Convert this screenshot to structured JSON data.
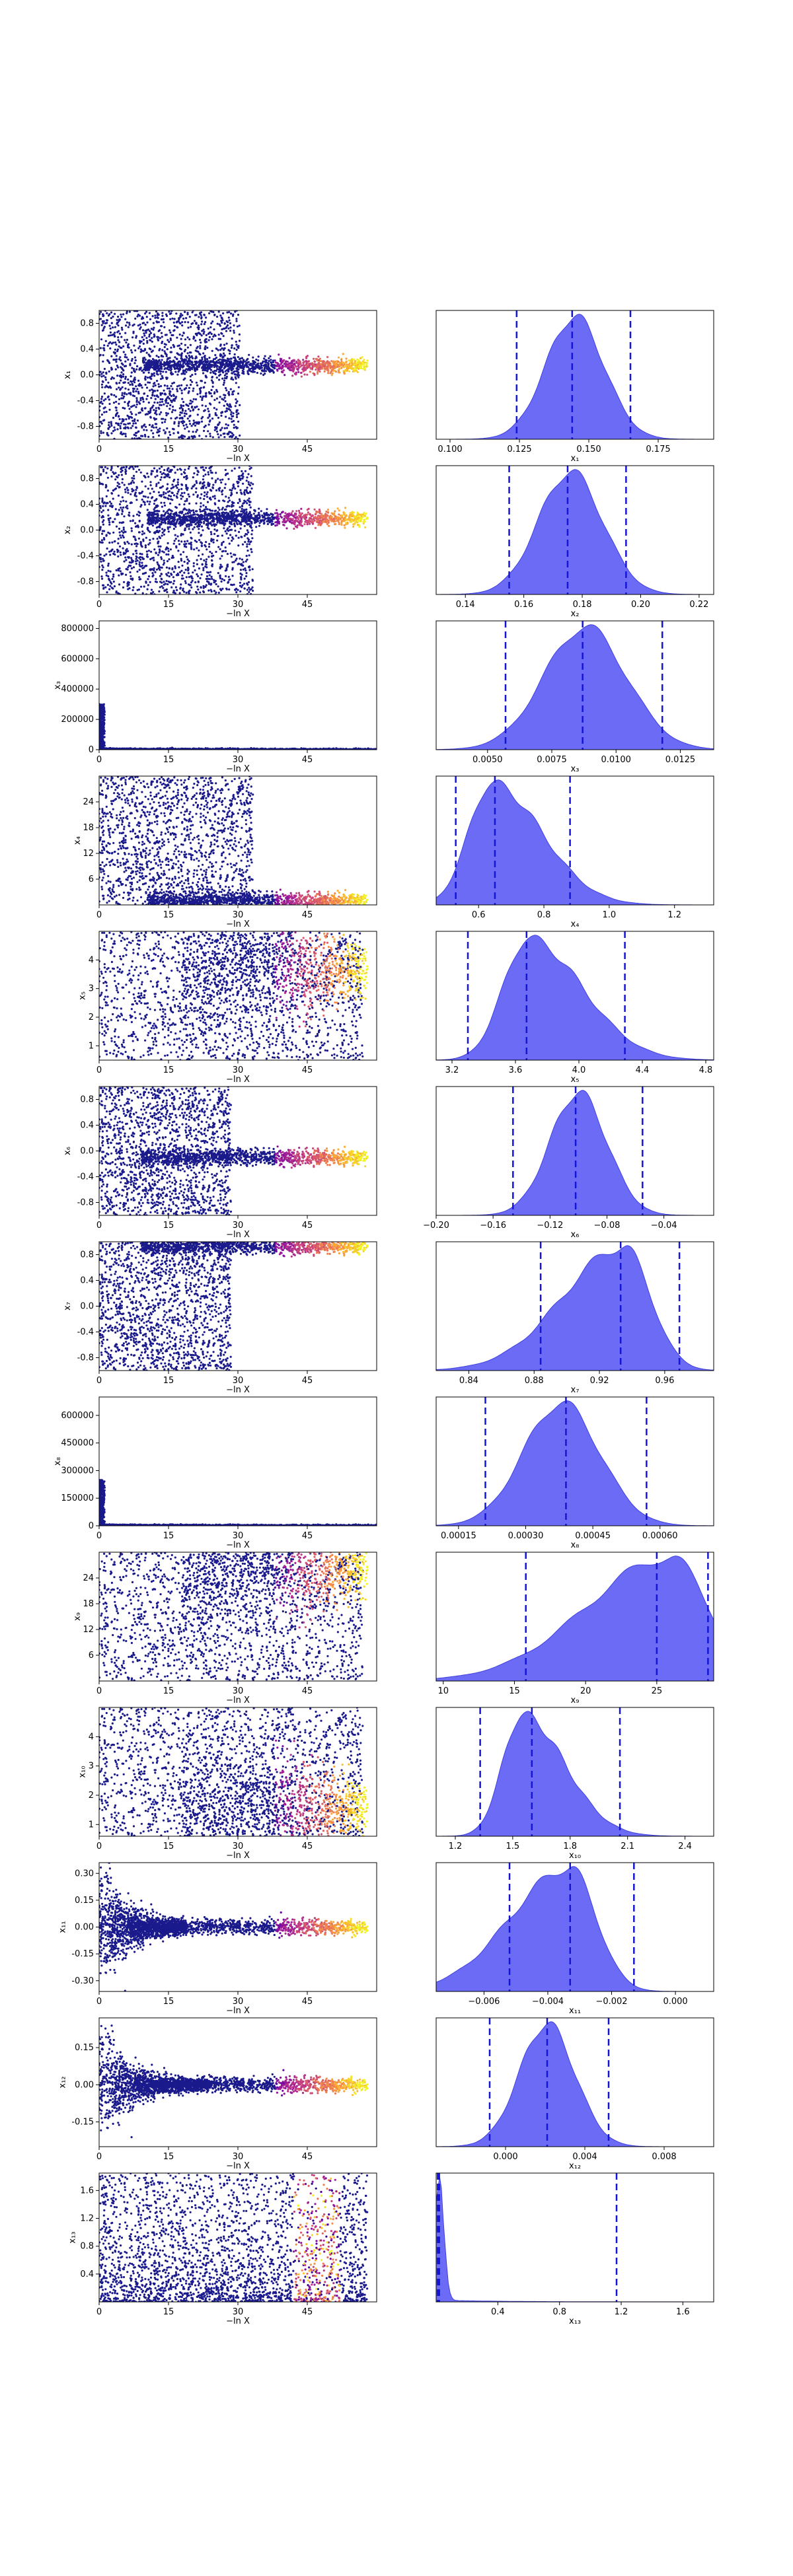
{
  "chart_data": {
    "type": "trace-plot-grid",
    "trace_xlabel": "−ln X",
    "trace_xticks": [
      0,
      15,
      30,
      45
    ],
    "trace_xlim": [
      0,
      60
    ],
    "colormap": [
      "#0d0887",
      "#6a00a8",
      "#b12a90",
      "#e16462",
      "#fca636",
      "#f0f921"
    ],
    "point_color": "#1a1a8c",
    "kde_color": "#5b5bf5",
    "quantile_color": "#1515d6",
    "params": [
      {
        "name": "x₁",
        "trace_ylim": [
          -1.0,
          1.0
        ],
        "trace_yticks": [
          "-0.8",
          "-0.4",
          "0.0",
          "0.4",
          "0.8"
        ],
        "trace_yvals": [
          -0.8,
          -0.4,
          0,
          0.4,
          0.8
        ],
        "pattern": "converge",
        "center": 0.145,
        "spread": 1.0,
        "cutoff": 32,
        "kde_xlim": [
          0.095,
          0.195
        ],
        "kde_xticks": [
          "0.100",
          "0.125",
          "0.150",
          "0.175"
        ],
        "kde_xvals": [
          0.1,
          0.125,
          0.15,
          0.175
        ],
        "kde_mean": 0.145,
        "kde_sd": 0.0105,
        "quantiles": [
          0.124,
          0.144,
          0.165
        ],
        "shape": "normal"
      },
      {
        "name": "x₂",
        "trace_ylim": [
          -1.0,
          1.0
        ],
        "trace_yticks": [
          "-0.8",
          "-0.4",
          "0.0",
          "0.4",
          "0.8"
        ],
        "trace_yvals": [
          -0.8,
          -0.4,
          0,
          0.4,
          0.8
        ],
        "pattern": "converge",
        "center": 0.18,
        "spread": 1.0,
        "cutoff": 35,
        "kde_xlim": [
          0.13,
          0.225
        ],
        "kde_xticks": [
          "0.14",
          "0.16",
          "0.18",
          "0.20",
          "0.22"
        ],
        "kde_xvals": [
          0.14,
          0.16,
          0.18,
          0.2,
          0.22
        ],
        "kde_mean": 0.176,
        "kde_sd": 0.011,
        "quantiles": [
          0.155,
          0.175,
          0.195
        ],
        "shape": "normal"
      },
      {
        "name": "x₃",
        "trace_ylim": [
          0,
          850000
        ],
        "trace_yticks": [
          "0",
          "200000",
          "400000",
          "600000",
          "800000"
        ],
        "trace_yvals": [
          0,
          200000,
          400000,
          600000,
          800000
        ],
        "pattern": "spike",
        "center": 0.009,
        "spread": 300000,
        "cutoff": 1,
        "kde_xlim": [
          0.003,
          0.0138
        ],
        "kde_xticks": [
          "0.0050",
          "0.0075",
          "0.0100",
          "0.0125"
        ],
        "kde_xvals": [
          0.005,
          0.0075,
          0.01,
          0.0125
        ],
        "kde_mean": 0.0088,
        "kde_sd": 0.0016,
        "quantiles": [
          0.0057,
          0.0087,
          0.0118
        ],
        "shape": "normal"
      },
      {
        "name": "x₄",
        "trace_ylim": [
          0,
          30
        ],
        "trace_yticks": [
          "6",
          "12",
          "18",
          "24"
        ],
        "trace_yvals": [
          6,
          12,
          18,
          24
        ],
        "pattern": "converge-low",
        "center": 1.0,
        "spread": 29,
        "cutoff": 35,
        "kde_xlim": [
          0.47,
          1.32
        ],
        "kde_xticks": [
          "0.6",
          "0.8",
          "1.0",
          "1.2"
        ],
        "kde_xvals": [
          0.6,
          0.8,
          1.0,
          1.2
        ],
        "kde_mean": 0.64,
        "kde_sd": 0.09,
        "quantiles": [
          0.53,
          0.65,
          0.88
        ],
        "shape": "skew-right"
      },
      {
        "name": "x₅",
        "trace_ylim": [
          0.5,
          5.0
        ],
        "trace_yticks": [
          "1",
          "2",
          "3",
          "4"
        ],
        "trace_yvals": [
          1,
          2,
          3,
          4
        ],
        "pattern": "fan-high",
        "center": 3.7,
        "spread": 4.5,
        "cutoff": 60,
        "kde_xlim": [
          3.1,
          4.85
        ],
        "kde_xticks": [
          "3.2",
          "3.6",
          "4.0",
          "4.4",
          "4.8"
        ],
        "kde_xvals": [
          3.2,
          3.6,
          4.0,
          4.4,
          4.8
        ],
        "kde_mean": 3.68,
        "kde_sd": 0.2,
        "quantiles": [
          3.3,
          3.67,
          4.29
        ],
        "shape": "skew-right"
      },
      {
        "name": "x₆",
        "trace_ylim": [
          -1.0,
          1.0
        ],
        "trace_yticks": [
          "-0.8",
          "-0.4",
          "0.0",
          "0.4",
          "0.8"
        ],
        "trace_yvals": [
          -0.8,
          -0.4,
          0,
          0.4,
          0.8
        ],
        "pattern": "converge",
        "center": -0.1,
        "spread": 1.0,
        "cutoff": 30,
        "kde_xlim": [
          -0.2,
          -0.005
        ],
        "kde_xticks": [
          "−0.20",
          "−0.16",
          "−0.12",
          "−0.08",
          "−0.04"
        ],
        "kde_xvals": [
          -0.2,
          -0.16,
          -0.12,
          -0.08,
          -0.04
        ],
        "kde_mean": -0.1,
        "kde_sd": 0.02,
        "quantiles": [
          -0.146,
          -0.102,
          -0.055
        ],
        "shape": "normal"
      },
      {
        "name": "x₇",
        "trace_ylim": [
          -1.0,
          1.0
        ],
        "trace_yticks": [
          "-0.8",
          "-0.4",
          "0.0",
          "0.4",
          "0.8"
        ],
        "trace_yvals": [
          -0.8,
          -0.4,
          0,
          0.4,
          0.8
        ],
        "pattern": "converge-high",
        "center": 0.93,
        "spread": 1.0,
        "cutoff": 30,
        "kde_xlim": [
          0.82,
          0.99
        ],
        "kde_xticks": [
          "0.84",
          "0.88",
          "0.92",
          "0.96"
        ],
        "kde_xvals": [
          0.84,
          0.88,
          0.92,
          0.96
        ],
        "kde_mean": 0.935,
        "kde_sd": 0.022,
        "quantiles": [
          0.884,
          0.933,
          0.969
        ],
        "shape": "skew-left"
      },
      {
        "name": "x₈",
        "trace_ylim": [
          0,
          700000
        ],
        "trace_yticks": [
          "0",
          "150000",
          "300000",
          "450000",
          "600000"
        ],
        "trace_yvals": [
          0,
          150000,
          300000,
          450000,
          600000
        ],
        "pattern": "spike",
        "center": 0.0004,
        "spread": 250000,
        "cutoff": 1,
        "kde_xlim": [
          0.0001,
          0.00072
        ],
        "kde_xticks": [
          "0.00015",
          "0.00030",
          "0.00045",
          "0.00060"
        ],
        "kde_xvals": [
          0.00015,
          0.0003,
          0.00045,
          0.0006
        ],
        "kde_mean": 0.00038,
        "kde_sd": 8.5e-05,
        "quantiles": [
          0.00021,
          0.00039,
          0.00057
        ],
        "shape": "normal"
      },
      {
        "name": "x₉",
        "trace_ylim": [
          0,
          30
        ],
        "trace_yticks": [
          "6",
          "12",
          "18",
          "24"
        ],
        "trace_yvals": [
          6,
          12,
          18,
          24
        ],
        "pattern": "diffuse-high",
        "center": 26,
        "spread": 30,
        "cutoff": 60,
        "kde_xlim": [
          9.5,
          29
        ],
        "kde_xticks": [
          "10",
          "15",
          "20",
          "25"
        ],
        "kde_xvals": [
          10,
          15,
          20,
          25
        ],
        "kde_mean": 26,
        "kde_sd": 3.5,
        "quantiles": [
          15.8,
          25.0,
          28.6
        ],
        "shape": "skew-left"
      },
      {
        "name": "x₁₀",
        "trace_ylim": [
          0.6,
          5.0
        ],
        "trace_yticks": [
          "1",
          "2",
          "3",
          "4"
        ],
        "trace_yvals": [
          1,
          2,
          3,
          4
        ],
        "pattern": "fan-low",
        "center": 1.6,
        "spread": 4.4,
        "cutoff": 60,
        "kde_xlim": [
          1.1,
          2.55
        ],
        "kde_xticks": [
          "1.2",
          "1.5",
          "1.8",
          "2.1",
          "2.4"
        ],
        "kde_xvals": [
          1.2,
          1.5,
          1.8,
          2.1,
          2.4
        ],
        "kde_mean": 1.55,
        "kde_sd": 0.13,
        "quantiles": [
          1.33,
          1.6,
          2.06
        ],
        "shape": "skew-right"
      },
      {
        "name": "x₁₁",
        "trace_ylim": [
          -0.36,
          0.36
        ],
        "trace_yticks": [
          "-0.30",
          "-0.15",
          "0.00",
          "0.15",
          "0.30"
        ],
        "trace_yvals": [
          -0.3,
          -0.15,
          0,
          0.15,
          0.3
        ],
        "pattern": "funnel",
        "center": 0.0,
        "spread": 0.34,
        "cutoff": 20,
        "kde_xlim": [
          -0.0075,
          0.0012
        ],
        "kde_xticks": [
          "−0.006",
          "−0.004",
          "−0.002",
          "0.000"
        ],
        "kde_xvals": [
          -0.006,
          -0.004,
          -0.002,
          0
        ],
        "kde_mean": -0.0033,
        "kde_sd": 0.0011,
        "quantiles": [
          -0.0052,
          -0.0033,
          -0.0013
        ],
        "shape": "skew-left"
      },
      {
        "name": "x₁₂",
        "trace_ylim": [
          -0.25,
          0.27
        ],
        "trace_yticks": [
          "-0.15",
          "0.00",
          "0.15"
        ],
        "trace_yvals": [
          -0.15,
          0,
          0.15
        ],
        "pattern": "funnel",
        "center": 0.0,
        "spread": 0.25,
        "cutoff": 25,
        "kde_xlim": [
          -0.0035,
          0.0105
        ],
        "kde_xticks": [
          "0.000",
          "0.004",
          "0.008"
        ],
        "kde_xvals": [
          0,
          0.004,
          0.008
        ],
        "kde_mean": 0.0021,
        "kde_sd": 0.0014,
        "quantiles": [
          -0.0008,
          0.0021,
          0.0052
        ],
        "shape": "normal"
      },
      {
        "name": "x₁₃",
        "trace_ylim": [
          0,
          1.85
        ],
        "trace_yticks": [
          "0.4",
          "0.8",
          "1.2",
          "1.6"
        ],
        "trace_yvals": [
          0.4,
          0.8,
          1.2,
          1.6
        ],
        "pattern": "scatter-band",
        "center": 0.1,
        "spread": 1.85,
        "cutoff": 60,
        "kde_xlim": [
          0,
          1.8
        ],
        "kde_xticks": [
          "0.4",
          "0.8",
          "1.2",
          "1.6"
        ],
        "kde_xvals": [
          0.4,
          0.8,
          1.2,
          1.6
        ],
        "kde_mean": 0.02,
        "kde_sd": 0.03,
        "quantiles": [
          0.01,
          0.02,
          1.17
        ],
        "shape": "spike-left"
      }
    ]
  }
}
